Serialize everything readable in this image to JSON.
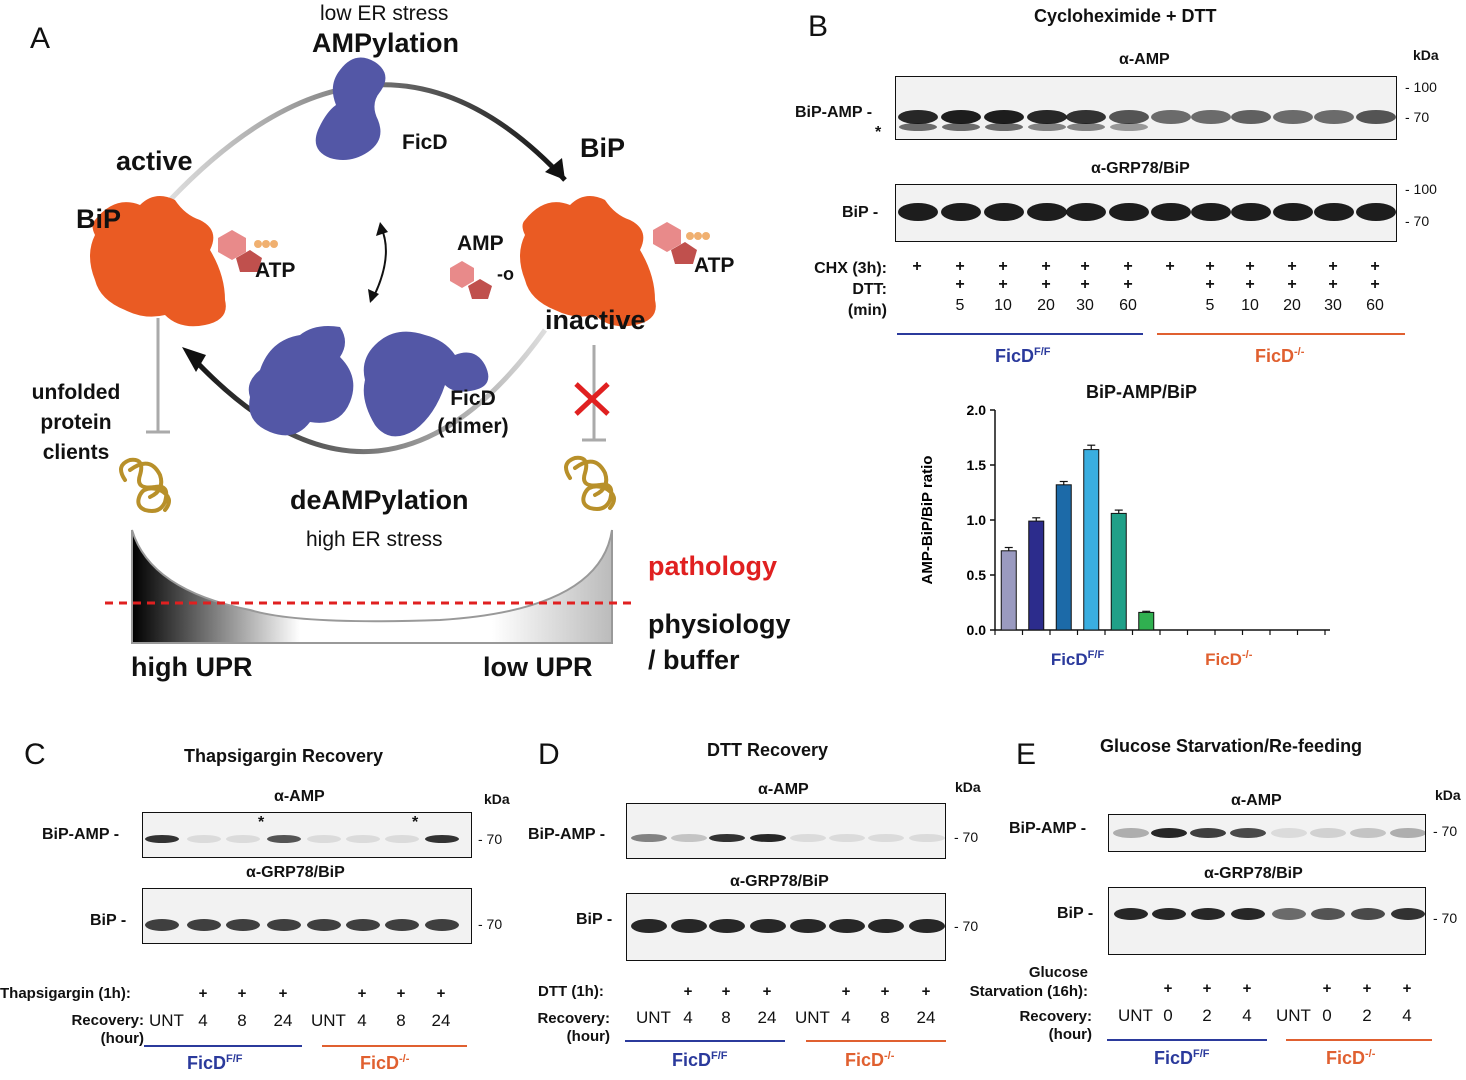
{
  "panelA": {
    "letter": "A",
    "low_stress": "low ER stress",
    "ampylation": "AMPylation",
    "ficd": "FicD",
    "bip_right": "BiP",
    "active": "active",
    "bip_left": "BiP",
    "atp_left": "ATP",
    "amp": "AMP",
    "o_link": "-o",
    "atp_right": "ATP",
    "inactive": "inactive",
    "unfolded": [
      "unfolded",
      "protein",
      "clients"
    ],
    "ficd_dimer": [
      "FicD",
      "(dimer)"
    ],
    "deampylation": "deAMPylation",
    "high_stress": "high ER stress",
    "pathology": "pathology",
    "physiology": [
      "physiology",
      "/ buffer"
    ],
    "high_upr": "high UPR",
    "low_upr": "low UPR"
  },
  "panelB": {
    "letter": "B",
    "title": "Cycloheximide + DTT",
    "kda": "kDa",
    "blot1_title": "α-AMP",
    "blot1_label": "BiP-AMP -",
    "asterisk": "*",
    "blot1_markers": [
      "- 100",
      "- 70"
    ],
    "blot2_title": "α-GRP78/BiP",
    "blot2_label": "BiP -",
    "blot2_markers": [
      "- 100",
      "- 70"
    ],
    "row_labels": [
      "CHX (3h):",
      "DTT:",
      "(min)"
    ],
    "chx": [
      "+",
      "+",
      "+",
      "+",
      "+",
      "+",
      "+",
      "+",
      "+",
      "+",
      "+",
      "+"
    ],
    "dtt": [
      "",
      "+",
      "+",
      "+",
      "+",
      "+",
      "",
      "+",
      "+",
      "+",
      "+",
      "+"
    ],
    "min": [
      "",
      "5",
      "10",
      "20",
      "30",
      "60",
      "",
      "5",
      "10",
      "20",
      "30",
      "60"
    ],
    "group1": "FicD",
    "group1_sup": "F/F",
    "group2": "FicD",
    "group2_sup": "-/-"
  },
  "chart_data": {
    "type": "bar",
    "title": "BiP-AMP/BiP",
    "ylabel": "AMP-BiP/BiP ratio",
    "ylim": [
      0,
      2.0
    ],
    "yticks": [
      "0.0",
      "0.5",
      "1.0",
      "1.5",
      "2.0"
    ],
    "values": [
      0.72,
      0.99,
      1.32,
      1.64,
      1.06,
      0.16,
      0,
      0,
      0,
      0,
      0,
      0
    ],
    "errors": [
      0.03,
      0.03,
      0.03,
      0.04,
      0.03,
      0.01,
      0,
      0,
      0,
      0,
      0,
      0
    ],
    "colors": [
      "#9a9ac0",
      "#2c2c8c",
      "#1c6aa8",
      "#3aaee0",
      "#20a088",
      "#30b050",
      "#888",
      "#888",
      "#888",
      "#888",
      "#888",
      "#888"
    ],
    "groups": [
      {
        "label": "FicD",
        "sup": "F/F",
        "color": "#2b3a9c"
      },
      {
        "label": "FicD",
        "sup": "-/-",
        "color": "#e06030"
      }
    ]
  },
  "panelC": {
    "letter": "C",
    "title": "Thapsigargin Recovery",
    "kda": "kDa",
    "blot1_title": "α-AMP",
    "blot1_label": "BiP-AMP -",
    "marker1": "- 70",
    "blot2_title": "α-GRP78/BiP",
    "blot2_label": "BiP -",
    "marker2": "- 70",
    "asterisk": "*",
    "treat_label": "Thapsigargin (1h):",
    "treat": [
      "",
      "+",
      "+",
      "+",
      "",
      "+",
      "+",
      "+"
    ],
    "rec_label": "Recovery:",
    "rec_unit": "(hour)",
    "rec": [
      "UNT",
      "4",
      "8",
      "24",
      "UNT",
      "4",
      "8",
      "24"
    ],
    "group1": "FicD",
    "group1_sup": "F/F",
    "group2": "FicD",
    "group2_sup": "-/-"
  },
  "panelD": {
    "letter": "D",
    "title": "DTT Recovery",
    "kda": "kDa",
    "blot1_title": "α-AMP",
    "blot1_label": "BiP-AMP -",
    "marker1": "- 70",
    "blot2_title": "α-GRP78/BiP",
    "blot2_label": "BiP -",
    "marker2": "- 70",
    "treat_label": "DTT (1h):",
    "treat": [
      "",
      "+",
      "+",
      "+",
      "",
      "+",
      "+",
      "+"
    ],
    "rec_label": "Recovery:",
    "rec_unit": "(hour)",
    "rec": [
      "UNT",
      "4",
      "8",
      "24",
      "UNT",
      "4",
      "8",
      "24"
    ],
    "group1": "FicD",
    "group1_sup": "F/F",
    "group2": "FicD",
    "group2_sup": "-/-"
  },
  "panelE": {
    "letter": "E",
    "title": "Glucose Starvation/Re-feeding",
    "kda": "kDa",
    "blot1_title": "α-AMP",
    "blot1_label": "BiP-AMP -",
    "marker1": "- 70",
    "blot2_title": "α-GRP78/BiP",
    "blot2_label": "BiP -",
    "marker2": "- 70",
    "treat_label": [
      "Glucose",
      "Starvation (16h):"
    ],
    "treat": [
      "",
      "+",
      "+",
      "+",
      "",
      "+",
      "+",
      "+"
    ],
    "rec_label": "Recovery:",
    "rec_unit": "(hour)",
    "rec": [
      "UNT",
      "0",
      "2",
      "4",
      "UNT",
      "0",
      "2",
      "4"
    ],
    "group1": "FicD",
    "group1_sup": "F/F",
    "group2": "FicD",
    "group2_sup": "-/-"
  }
}
